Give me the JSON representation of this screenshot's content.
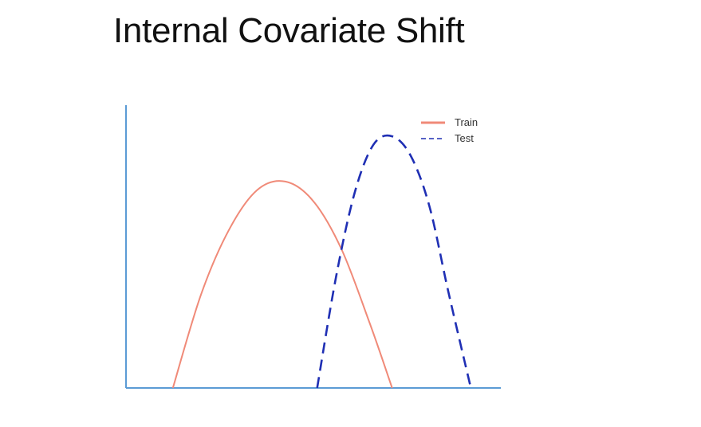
{
  "slide": {
    "title": "Internal Covariate Shift"
  },
  "chart_data": {
    "type": "line",
    "title": "Internal Covariate Shift",
    "xlabel": "",
    "ylabel": "",
    "grid": false,
    "legend_position": "top-right",
    "x_range": [
      0,
      10
    ],
    "y_range": [
      0,
      10
    ],
    "series": [
      {
        "name": "Train",
        "style": "solid",
        "color": "#f08a78",
        "x": [
          1.25,
          2.0,
          2.75,
          3.5,
          4.25,
          5.0,
          5.75,
          6.5,
          7.1
        ],
        "y": [
          0.0,
          3.3,
          5.6,
          7.0,
          7.3,
          6.6,
          4.9,
          2.3,
          0.0
        ]
      },
      {
        "name": "Test",
        "style": "dashed",
        "color": "#1f2fb4",
        "x": [
          5.1,
          5.6,
          6.1,
          6.6,
          7.1,
          7.6,
          8.1,
          8.6,
          9.2
        ],
        "y": [
          0.0,
          3.9,
          6.9,
          8.6,
          8.9,
          8.2,
          6.4,
          3.4,
          0.0
        ]
      }
    ],
    "axis_color": "#5b9bd5"
  }
}
